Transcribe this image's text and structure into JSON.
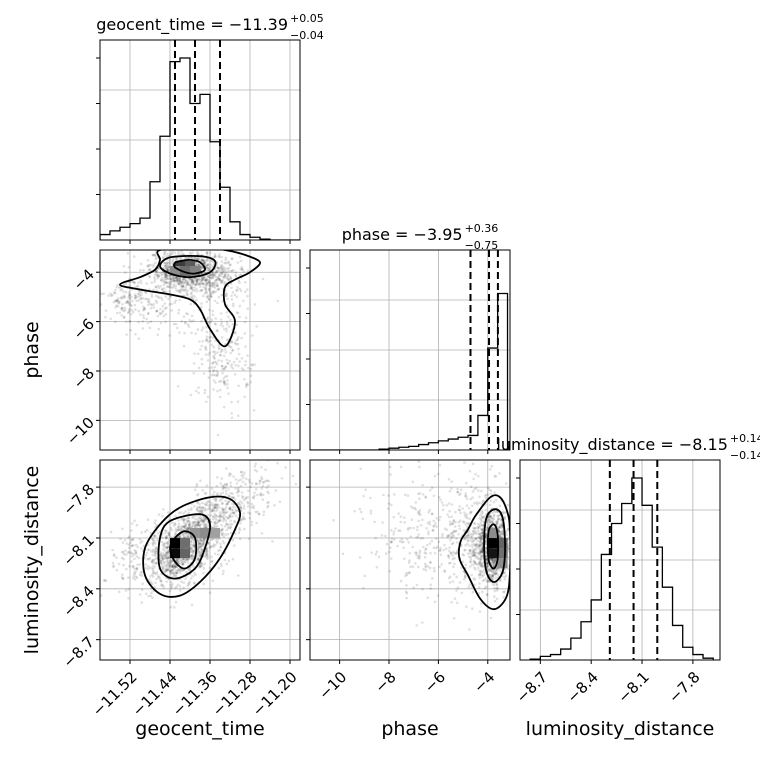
{
  "chart_data": {
    "type": "corner",
    "parameters": [
      {
        "name": "geocent_time",
        "axis_label": "geocent_time",
        "title_text": "geocent_time = −11.39",
        "title_sup": "+0.05",
        "title_sub": "−0.04",
        "range": [
          -11.58,
          -11.18
        ],
        "ticks": [
          -11.52,
          -11.44,
          -11.36,
          -11.28,
          -11.2
        ],
        "tick_labels": [
          "−11.52",
          "−11.44",
          "−11.36",
          "−11.28",
          "−11.20"
        ],
        "median": -11.39,
        "quantiles": [
          -11.43,
          -11.39,
          -11.34
        ],
        "hist_edges": [
          -11.58,
          -11.56,
          -11.54,
          -11.52,
          -11.5,
          -11.48,
          -11.46,
          -11.44,
          -11.42,
          -11.4,
          -11.38,
          -11.36,
          -11.34,
          -11.32,
          -11.3,
          -11.28,
          -11.26,
          -11.24,
          -11.22,
          -11.2,
          -11.18
        ],
        "hist_counts": [
          0.03,
          0.05,
          0.07,
          0.09,
          0.12,
          0.32,
          0.57,
          0.98,
          1.0,
          0.75,
          0.8,
          0.54,
          0.29,
          0.1,
          0.03,
          0.015,
          0.005,
          0.0,
          0.0,
          0.0
        ]
      },
      {
        "name": "phase",
        "axis_label": "phase",
        "title_text": "phase = −3.95",
        "title_sup": "+0.36",
        "title_sub": "−0.75",
        "range": [
          -11.2,
          -3.1
        ],
        "ticks": [
          -10,
          -8,
          -6,
          -4
        ],
        "tick_labels": [
          "−10",
          "−8",
          "−6",
          "−4"
        ],
        "median": -3.95,
        "quantiles": [
          -4.7,
          -3.95,
          -3.59
        ],
        "hist_edges": [
          -11.2,
          -10.8,
          -10.4,
          -10.0,
          -9.6,
          -9.2,
          -8.8,
          -8.4,
          -8.0,
          -7.6,
          -7.2,
          -6.8,
          -6.4,
          -6.0,
          -5.6,
          -5.2,
          -4.8,
          -4.4,
          -4.0,
          -3.6,
          -3.2
        ],
        "hist_counts": [
          0.0,
          0.0,
          0.0,
          0.0,
          0.0,
          0.0,
          0.0,
          0.005,
          0.01,
          0.015,
          0.02,
          0.03,
          0.04,
          0.05,
          0.06,
          0.07,
          0.08,
          0.19,
          0.56,
          0.86
        ]
      },
      {
        "name": "luminosity_distance",
        "axis_label": "luminosity_distance",
        "title_text": "luminosity_distance = −8.15",
        "title_sup": "+0.14",
        "title_sub": "−0.14",
        "range": [
          -8.82,
          -7.64
        ],
        "ticks": [
          -8.7,
          -8.4,
          -8.1,
          -7.8
        ],
        "tick_labels": [
          "−8.7",
          "−8.4",
          "−8.1",
          "−7.8"
        ],
        "tick_labels_y": [
          "−8.7",
          "−8.4",
          "−8.1",
          "−7.8"
        ],
        "median": -8.15,
        "quantiles": [
          -8.29,
          -8.15,
          -8.01
        ],
        "hist_edges": [
          -8.76,
          -8.7,
          -8.64,
          -8.58,
          -8.52,
          -8.46,
          -8.4,
          -8.34,
          -8.28,
          -8.22,
          -8.16,
          -8.1,
          -8.04,
          -7.98,
          -7.92,
          -7.86,
          -7.8,
          -7.74,
          -7.68
        ],
        "hist_counts": [
          0.005,
          0.02,
          0.03,
          0.06,
          0.12,
          0.21,
          0.33,
          0.58,
          0.75,
          0.86,
          1.0,
          0.85,
          0.62,
          0.4,
          0.19,
          0.07,
          0.03,
          0.01
        ]
      }
    ],
    "pairs": [
      {
        "x": "geocent_time",
        "y": "phase",
        "blobs": [
          {
            "cx": -11.41,
            "cy": -3.9,
            "sx": 0.035,
            "sy": 0.4,
            "w": 0.45
          },
          {
            "cx": -11.36,
            "cy": -4.3,
            "sx": 0.04,
            "sy": 0.5,
            "w": 0.2
          },
          {
            "cx": -11.34,
            "cy": -6.6,
            "sx": 0.03,
            "sy": 1.2,
            "w": 0.12
          },
          {
            "cx": -11.47,
            "cy": -5.2,
            "sx": 0.05,
            "sy": 0.6,
            "w": 0.13
          },
          {
            "cx": -11.53,
            "cy": -5.0,
            "sx": 0.02,
            "sy": 0.4,
            "w": 0.05
          },
          {
            "cx": -11.33,
            "cy": -8.0,
            "sx": 0.035,
            "sy": 0.8,
            "w": 0.05
          }
        ],
        "contours": [
          [
            [
              -11.42,
              -3.55
            ],
            [
              -11.4,
              -3.5
            ],
            [
              -11.38,
              -3.6
            ],
            [
              -11.37,
              -3.9
            ],
            [
              -11.39,
              -4.05
            ],
            [
              -11.41,
              -4.0
            ],
            [
              -11.43,
              -3.8
            ],
            [
              -11.43,
              -3.62
            ]
          ],
          [
            [
              -11.44,
              -3.4
            ],
            [
              -11.38,
              -3.35
            ],
            [
              -11.35,
              -3.55
            ],
            [
              -11.36,
              -4.0
            ],
            [
              -11.4,
              -4.2
            ],
            [
              -11.44,
              -4.05
            ],
            [
              -11.46,
              -3.75
            ]
          ],
          [
            [
              -11.46,
              -3.1
            ],
            [
              -11.38,
              -3.0
            ],
            [
              -11.33,
              -3.1
            ],
            [
              -11.29,
              -3.3
            ],
            [
              -11.26,
              -3.6
            ],
            [
              -11.28,
              -4.0
            ],
            [
              -11.31,
              -4.3
            ],
            [
              -11.33,
              -4.6
            ],
            [
              -11.33,
              -5.3
            ],
            [
              -11.31,
              -6.0
            ],
            [
              -11.33,
              -7.0
            ],
            [
              -11.36,
              -6.3
            ],
            [
              -11.38,
              -5.5
            ],
            [
              -11.4,
              -5.1
            ],
            [
              -11.44,
              -4.9
            ],
            [
              -11.5,
              -4.7
            ],
            [
              -11.54,
              -4.5
            ],
            [
              -11.5,
              -4.2
            ],
            [
              -11.47,
              -3.9
            ],
            [
              -11.46,
              -3.5
            ]
          ]
        ],
        "hist_cells": [
          {
            "x": -11.41,
            "y": -3.75,
            "v": 1.0
          },
          {
            "x": -11.42,
            "y": -3.75,
            "v": 0.7
          },
          {
            "x": -11.4,
            "y": -3.75,
            "v": 0.55
          },
          {
            "x": -11.41,
            "y": -3.95,
            "v": 0.45
          },
          {
            "x": -11.39,
            "y": -3.95,
            "v": 0.35
          },
          {
            "x": -11.43,
            "y": -3.95,
            "v": 0.3
          }
        ]
      },
      {
        "x": "geocent_time",
        "y": "luminosity_distance",
        "blobs": [
          {
            "cx": -11.41,
            "cy": -8.15,
            "sx": 0.04,
            "sy": 0.12,
            "w": 0.55,
            "rho": 0.55
          },
          {
            "cx": -11.36,
            "cy": -8.05,
            "sx": 0.05,
            "sy": 0.16,
            "w": 0.25,
            "rho": 0.6
          },
          {
            "cx": -11.5,
            "cy": -8.2,
            "sx": 0.04,
            "sy": 0.12,
            "w": 0.1,
            "rho": 0.4
          },
          {
            "cx": -11.3,
            "cy": -7.85,
            "sx": 0.04,
            "sy": 0.1,
            "w": 0.1,
            "rho": 0.4
          }
        ],
        "contours": [
          [
            [
              -11.43,
              -8.1
            ],
            [
              -11.41,
              -8.06
            ],
            [
              -11.39,
              -8.1
            ],
            [
              -11.39,
              -8.22
            ],
            [
              -11.41,
              -8.28
            ],
            [
              -11.43,
              -8.24
            ],
            [
              -11.44,
              -8.16
            ]
          ],
          [
            [
              -11.44,
              -8.0
            ],
            [
              -11.38,
              -7.96
            ],
            [
              -11.36,
              -8.02
            ],
            [
              -11.37,
              -8.16
            ],
            [
              -11.39,
              -8.28
            ],
            [
              -11.43,
              -8.34
            ],
            [
              -11.46,
              -8.28
            ],
            [
              -11.46,
              -8.1
            ]
          ],
          [
            [
              -11.42,
              -7.92
            ],
            [
              -11.36,
              -7.86
            ],
            [
              -11.32,
              -7.87
            ],
            [
              -11.3,
              -7.95
            ],
            [
              -11.31,
              -8.05
            ],
            [
              -11.34,
              -8.22
            ],
            [
              -11.38,
              -8.36
            ],
            [
              -11.42,
              -8.44
            ],
            [
              -11.46,
              -8.43
            ],
            [
              -11.49,
              -8.32
            ],
            [
              -11.49,
              -8.16
            ],
            [
              -11.46,
              -8.02
            ]
          ]
        ],
        "hist_cells": [
          {
            "x": -11.43,
            "y": -8.13,
            "v": 1.0
          },
          {
            "x": -11.43,
            "y": -8.19,
            "v": 0.95
          },
          {
            "x": -11.41,
            "y": -8.19,
            "v": 0.5
          },
          {
            "x": -11.41,
            "y": -8.13,
            "v": 0.45
          },
          {
            "x": -11.39,
            "y": -8.07,
            "v": 0.25
          },
          {
            "x": -11.37,
            "y": -8.07,
            "v": 0.3
          },
          {
            "x": -11.35,
            "y": -8.07,
            "v": 0.2
          }
        ]
      },
      {
        "x": "phase",
        "y": "luminosity_distance",
        "blobs": [
          {
            "cx": -3.8,
            "cy": -8.15,
            "sx": 0.35,
            "sy": 0.1,
            "w": 0.55
          },
          {
            "cx": -4.3,
            "cy": -8.12,
            "sx": 0.7,
            "sy": 0.18,
            "w": 0.25
          },
          {
            "cx": -6.5,
            "cy": -8.1,
            "sx": 1.2,
            "sy": 0.2,
            "w": 0.2
          }
        ],
        "contours": [
          [
            [
              -3.95,
              -8.05
            ],
            [
              -3.75,
              -8.02
            ],
            [
              -3.6,
              -8.08
            ],
            [
              -3.6,
              -8.22
            ],
            [
              -3.75,
              -8.28
            ],
            [
              -3.95,
              -8.24
            ],
            [
              -4.0,
              -8.14
            ]
          ],
          [
            [
              -4.05,
              -7.98
            ],
            [
              -3.7,
              -7.93
            ],
            [
              -3.4,
              -7.98
            ],
            [
              -3.3,
              -8.15
            ],
            [
              -3.4,
              -8.3
            ],
            [
              -3.75,
              -8.36
            ],
            [
              -4.05,
              -8.3
            ],
            [
              -4.15,
              -8.14
            ]
          ],
          [
            [
              -4.5,
              -7.97
            ],
            [
              -3.9,
              -7.86
            ],
            [
              -3.5,
              -7.86
            ],
            [
              -3.2,
              -7.95
            ],
            [
              -3.1,
              -8.06
            ],
            [
              -3.1,
              -8.3
            ],
            [
              -3.25,
              -8.45
            ],
            [
              -3.75,
              -8.52
            ],
            [
              -4.3,
              -8.46
            ],
            [
              -4.8,
              -8.32
            ],
            [
              -5.15,
              -8.22
            ],
            [
              -5.1,
              -8.12
            ],
            [
              -4.8,
              -8.05
            ]
          ]
        ],
        "hist_cells": [
          {
            "x": -3.8,
            "y": -8.13,
            "v": 1.0
          },
          {
            "x": -3.8,
            "y": -8.19,
            "v": 0.9
          },
          {
            "x": -3.4,
            "y": -8.13,
            "v": 0.5
          },
          {
            "x": -3.4,
            "y": -8.19,
            "v": 0.45
          },
          {
            "x": -3.8,
            "y": -8.07,
            "v": 0.3
          },
          {
            "x": -3.4,
            "y": -8.25,
            "v": 0.3
          }
        ]
      }
    ]
  }
}
